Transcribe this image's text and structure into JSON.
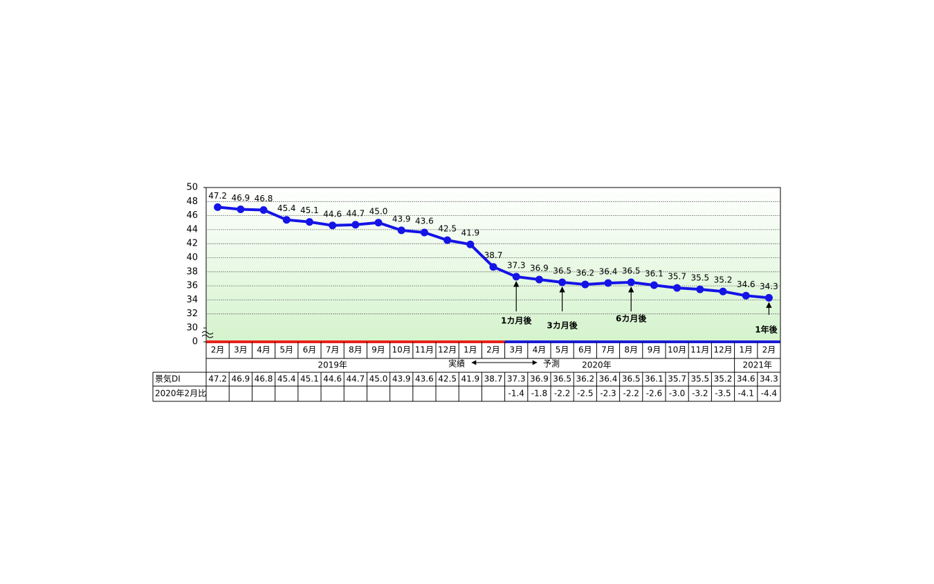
{
  "chart_data": {
    "type": "line",
    "categories": [
      "2月",
      "3月",
      "4月",
      "5月",
      "6月",
      "7月",
      "8月",
      "9月",
      "10月",
      "11月",
      "12月",
      "1月",
      "2月",
      "3月",
      "4月",
      "5月",
      "6月",
      "7月",
      "8月",
      "9月",
      "10月",
      "11月",
      "12月",
      "1月",
      "2月"
    ],
    "values": [
      47.2,
      46.9,
      46.8,
      45.4,
      45.1,
      44.6,
      44.7,
      45.0,
      43.9,
      43.6,
      42.5,
      41.9,
      38.7,
      37.3,
      36.9,
      36.5,
      36.2,
      36.4,
      36.5,
      36.1,
      35.7,
      35.5,
      35.2,
      34.6,
      34.3
    ],
    "value_labels": [
      "47.2",
      "46.9",
      "46.8",
      "45.4",
      "45.1",
      "44.6",
      "44.7",
      "45.0",
      "43.9",
      "43.6",
      "42.5",
      "41.9",
      "38.7",
      "37.3",
      "36.9",
      "36.5",
      "36.2",
      "36.4",
      "36.5",
      "36.1",
      "35.7",
      "35.5",
      "35.2",
      "34.6",
      "34.3"
    ],
    "color": "#1414e6",
    "ylim": [
      30,
      50
    ],
    "yticks": [
      0,
      30,
      32,
      34,
      36,
      38,
      40,
      42,
      44,
      46,
      48,
      50
    ],
    "axis_break": true,
    "grid": true,
    "years": [
      {
        "label": "2019年",
        "span": 11
      },
      {
        "label": "2020年",
        "span": 12
      },
      {
        "label": "2021年",
        "span": 2
      }
    ],
    "forecast_start": 13,
    "actual_color": "#e8201a",
    "forecast_color": "#1a1ad8",
    "period_labels": {
      "actual": "実績",
      "forecast": "予測"
    },
    "annotations": [
      {
        "text": "1カ月後",
        "index": 13
      },
      {
        "text": "3カ月後",
        "index": 15
      },
      {
        "text": "6カ月後",
        "index": 18
      },
      {
        "text": "1年後",
        "index": 24
      }
    ]
  },
  "table": {
    "rows": [
      {
        "label": "景気DI"
      },
      {
        "label": "2020年2月比",
        "cells": [
          null,
          null,
          null,
          null,
          null,
          null,
          null,
          null,
          null,
          null,
          null,
          null,
          null,
          "-1.4",
          "-1.8",
          "-2.2",
          "-2.5",
          "-2.3",
          "-2.2",
          "-2.6",
          "-3.0",
          "-3.2",
          "-3.5",
          "-4.1",
          "-4.4"
        ]
      }
    ]
  }
}
